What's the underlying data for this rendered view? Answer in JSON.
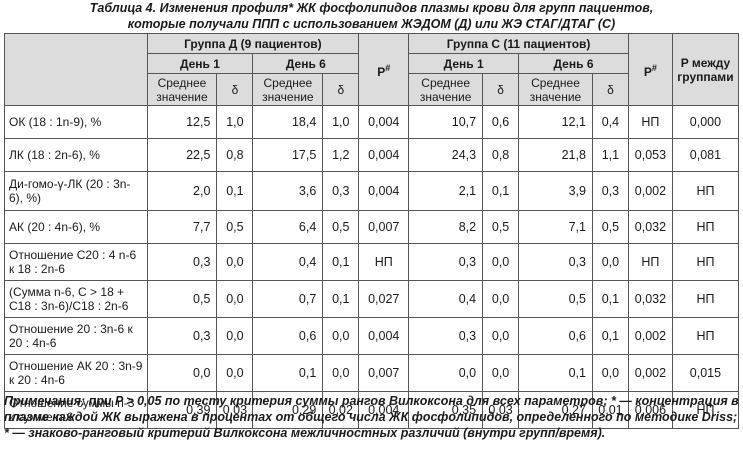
{
  "caption": {
    "line1": "Таблица 4. Изменения профиля* ЖК фосфолипидов плазмы крови для групп пациентов,",
    "line2": "которые получали ППП с использованием ЖЭДОМ (Д) или ЖЭ СТАГ/ДТАГ (С)"
  },
  "header": {
    "group_d": "Группа Д (9 пациентов)",
    "group_c": "Группа С (11 пациентов)",
    "p_hash_d": "P",
    "p_hash_c": "P",
    "hash_mark": "#",
    "p_between": "P между группами",
    "day1": "День 1",
    "day6": "День 6",
    "mean": "Среднее значение",
    "delta": "δ"
  },
  "rows": [
    {
      "label": "ОК (18 : 1n-9), %",
      "v": [
        "12,5",
        "1,0",
        "18,4",
        "1,0",
        "0,004",
        "10,7",
        "0,6",
        "12,1",
        "0,4",
        "НП",
        "0,000"
      ]
    },
    {
      "label": "ЛК (18 : 2n-6), %",
      "v": [
        "22,5",
        "0,8",
        "17,5",
        "1,2",
        "0,004",
        "24,3",
        "0,8",
        "21,8",
        "1,1",
        "0,053",
        "0,081"
      ]
    },
    {
      "label": "Ди-гомо-γ-ЛК (20 : 3n-6), %)",
      "v": [
        "2,0",
        "0,1",
        "3,6",
        "0,3",
        "0,004",
        "2,1",
        "0,1",
        "3,9",
        "0,3",
        "0,002",
        "НП"
      ]
    },
    {
      "label": "АК (20 : 4n-6), %",
      "v": [
        "7,7",
        "0,5",
        "6,4",
        "0,5",
        "0,007",
        "8,2",
        "0,5",
        "7,1",
        "0,5",
        "0,032",
        "НП"
      ]
    },
    {
      "label": "Отношение С20 : 4 n-6 к 18 : 2n-6",
      "v": [
        "0,3",
        "0,0",
        "0,4",
        "0,1",
        "НП",
        "0,3",
        "0,0",
        "0,3",
        "0,0",
        "НП",
        "НП"
      ]
    },
    {
      "label": "(Сумма n-6, С > 18 + С18 : 3n-6)/С18 : 2n-6",
      "v": [
        "0,5",
        "0,0",
        "0,7",
        "0,1",
        "0,027",
        "0,4",
        "0,0",
        "0,5",
        "0,1",
        "0,032",
        "НП"
      ]
    },
    {
      "label": "Отношение 20 : 3n-6 к 20 : 4n-6",
      "v": [
        "0,3",
        "0,0",
        "0,6",
        "0,0",
        "0,004",
        "0,3",
        "0,0",
        "0,6",
        "0,1",
        "0,002",
        "НП"
      ]
    },
    {
      "label": "Отношение АК 20 : 3n-9 к 20 : 4n-6",
      "v": [
        "0,0",
        "0,0",
        "0,1",
        "0,0",
        "0,007",
        "0,0",
        "0,0",
        "0,1",
        "0,0",
        "0,002",
        "0,015"
      ]
    },
    {
      "label": "Отношение суммы n-3 к сумме n-6",
      "v": [
        "0,39",
        "0,03",
        "0,29",
        "0,02",
        "0,004",
        "0,35",
        "0,03",
        "0,27",
        "0,01",
        "0,006",
        "НП"
      ]
    }
  ],
  "note": "Примечания: при P > 0,05 по тесту критерия суммы рангов Вилкоксона для всех параметров; * — концентрация в плазме каждой ЖК выражена в процентах от общего числа ЖК фосфолипидов, определенного по методике Driss; * — знаково-ранговый критерий Вилкоксона межличностных различий (внутри групп/время)."
}
